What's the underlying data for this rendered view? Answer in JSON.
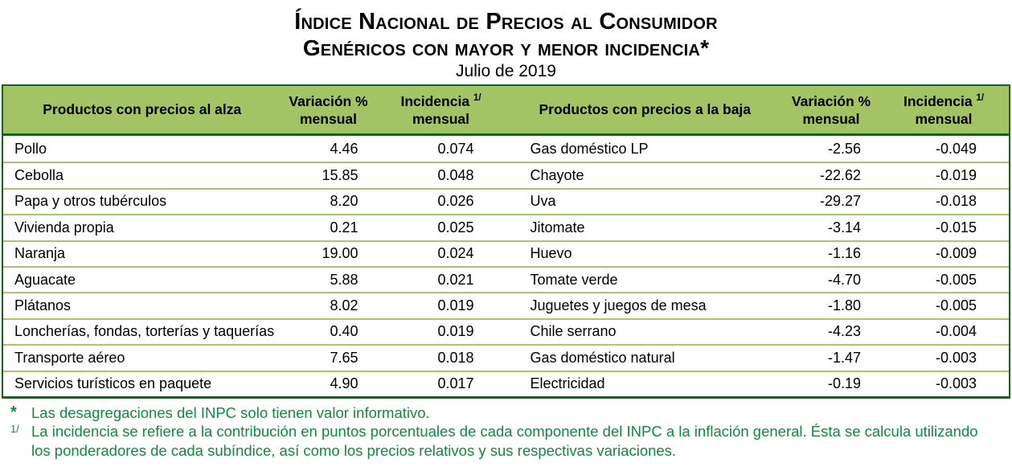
{
  "title": {
    "line1": "Índice Nacional de Precios al Consumidor",
    "line2": "Genéricos con mayor y menor incidencia*",
    "subtitle": "Julio de 2019"
  },
  "table": {
    "headers": {
      "alza_product": "Productos con precios al alza",
      "baja_product": "Productos con precios a la baja",
      "variacion_line1": "Variación %",
      "variacion_line2": "mensual",
      "incidencia_line1": "Incidencia",
      "incidencia_sup": "1/",
      "incidencia_line2": "mensual"
    },
    "rows": [
      {
        "alza": "Pollo",
        "alza_var": "4.46",
        "alza_inc": "0.074",
        "baja": "Gas doméstico LP",
        "baja_var": "-2.56",
        "baja_inc": "-0.049"
      },
      {
        "alza": "Cebolla",
        "alza_var": "15.85",
        "alza_inc": "0.048",
        "baja": "Chayote",
        "baja_var": "-22.62",
        "baja_inc": "-0.019"
      },
      {
        "alza": "Papa y otros tubérculos",
        "alza_var": "8.20",
        "alza_inc": "0.026",
        "baja": "Uva",
        "baja_var": "-29.27",
        "baja_inc": "-0.018"
      },
      {
        "alza": "Vivienda propia",
        "alza_var": "0.21",
        "alza_inc": "0.025",
        "baja": "Jitomate",
        "baja_var": "-3.14",
        "baja_inc": "-0.015"
      },
      {
        "alza": "Naranja",
        "alza_var": "19.00",
        "alza_inc": "0.024",
        "baja": "Huevo",
        "baja_var": "-1.16",
        "baja_inc": "-0.009"
      },
      {
        "alza": "Aguacate",
        "alza_var": "5.88",
        "alza_inc": "0.021",
        "baja": "Tomate verde",
        "baja_var": "-4.70",
        "baja_inc": "-0.005"
      },
      {
        "alza": "Plátanos",
        "alza_var": "8.02",
        "alza_inc": "0.019",
        "baja": "Juguetes y juegos de mesa",
        "baja_var": "-1.80",
        "baja_inc": "-0.005"
      },
      {
        "alza": "Loncherías, fondas, torterías y taquerías",
        "alza_var": "0.40",
        "alza_inc": "0.019",
        "baja": "Chile serrano",
        "baja_var": "-4.23",
        "baja_inc": "-0.004"
      },
      {
        "alza": "Transporte aéreo",
        "alza_var": "7.65",
        "alza_inc": "0.018",
        "baja": "Gas doméstico natural",
        "baja_var": "-1.47",
        "baja_inc": "-0.003"
      },
      {
        "alza": "Servicios turísticos en paquete",
        "alza_var": "4.90",
        "alza_inc": "0.017",
        "baja": "Electricidad",
        "baja_var": "-0.19",
        "baja_inc": "-0.003"
      }
    ]
  },
  "footnotes": [
    {
      "marker": "*",
      "text": "Las desagregaciones del INPC solo tienen valor informativo."
    },
    {
      "marker": "1/",
      "text": "La incidencia se refiere a la contribución en puntos porcentuales de cada componente del INPC a la inflación general. Ésta se calcula utilizando los ponderadores de cada subíndice, así como los precios relativos y sus respectivas variaciones."
    }
  ],
  "colors": {
    "header_bg": "#A4C364",
    "table_border": "#166316",
    "row_divider": "#AAC56F",
    "footnote_text": "#108A40",
    "body_text": "#000000"
  }
}
